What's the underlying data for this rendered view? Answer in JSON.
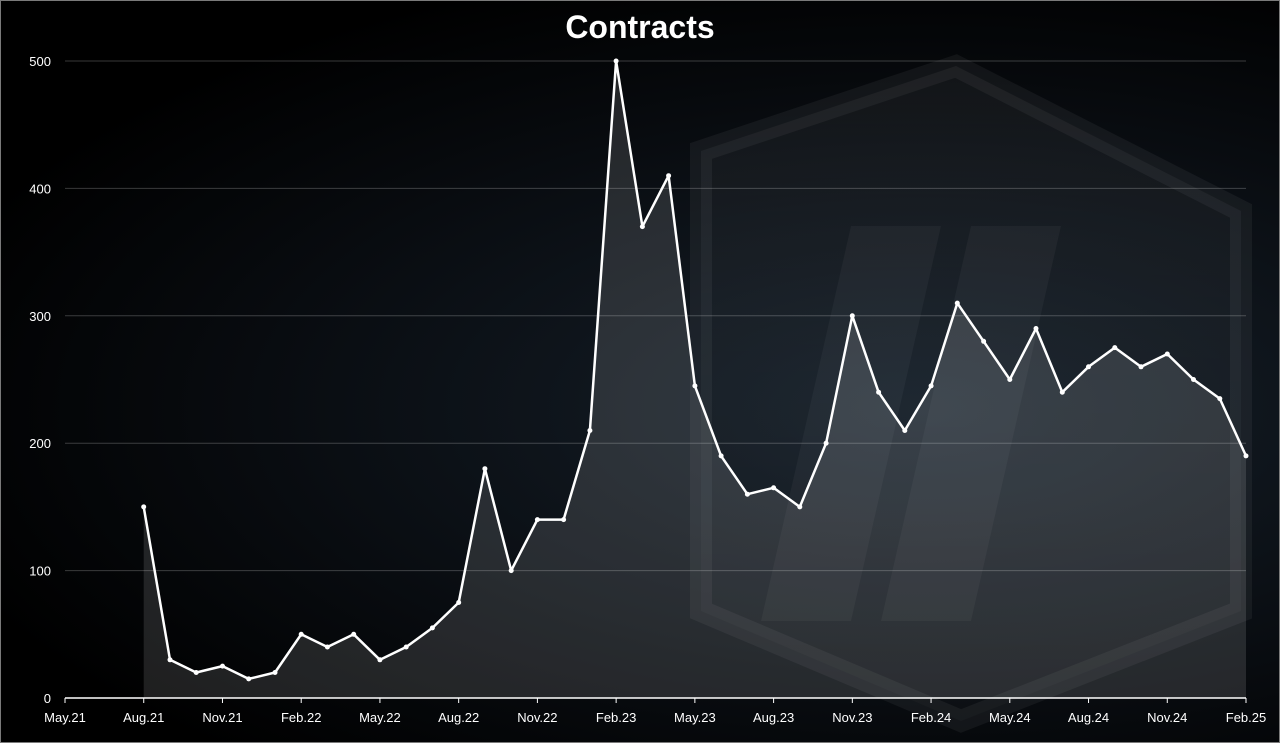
{
  "chart_data": {
    "type": "line",
    "title": "Contracts",
    "xlabel": "",
    "ylabel": "",
    "ylim": [
      0,
      500
    ],
    "yticks": [
      0,
      100,
      200,
      300,
      400,
      500
    ],
    "xticks": [
      "May.21",
      "Aug.21",
      "Nov.21",
      "Feb.22",
      "May.22",
      "Aug.22",
      "Nov.22",
      "Feb.23",
      "May.23",
      "Aug.23",
      "Nov.23",
      "Feb.24",
      "May.24",
      "Aug.24",
      "Nov.24",
      "Feb.25"
    ],
    "grid": true,
    "legend": "none",
    "x_start": "2021-05",
    "x_end": "2025-02",
    "series": [
      {
        "color": "#ffffff",
        "x": [
          "2021-08",
          "2021-09",
          "2021-10",
          "2021-11",
          "2021-12",
          "2022-01",
          "2022-02",
          "2022-03",
          "2022-04",
          "2022-05",
          "2022-06",
          "2022-07",
          "2022-08",
          "2022-09",
          "2022-10",
          "2022-11",
          "2022-12",
          "2023-01",
          "2023-02",
          "2023-03",
          "2023-04",
          "2023-05",
          "2023-06",
          "2023-07",
          "2023-08",
          "2023-09",
          "2023-10",
          "2023-11",
          "2023-12",
          "2024-01",
          "2024-02",
          "2024-03",
          "2024-04",
          "2024-05",
          "2024-06",
          "2024-07",
          "2024-08",
          "2024-09",
          "2024-10",
          "2024-11",
          "2024-12",
          "2025-01",
          "2025-02"
        ],
        "values": [
          150,
          30,
          20,
          25,
          15,
          20,
          50,
          40,
          50,
          30,
          40,
          55,
          75,
          180,
          100,
          140,
          140,
          210,
          500,
          370,
          410,
          245,
          190,
          160,
          165,
          150,
          200,
          300,
          240,
          210,
          245,
          310,
          280,
          250,
          290,
          240,
          260,
          275,
          260,
          270,
          250,
          235,
          190
        ]
      }
    ]
  }
}
